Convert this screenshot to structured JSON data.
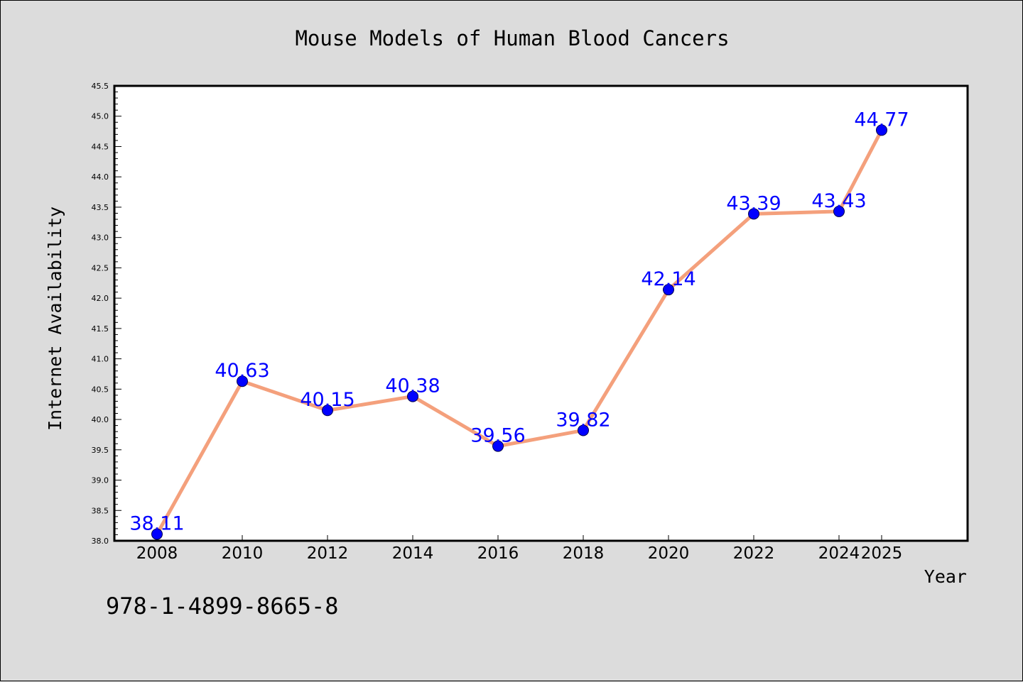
{
  "chart_data": {
    "type": "line",
    "title": "Mouse Models of Human Blood Cancers",
    "xlabel": "Year",
    "ylabel": "Internet Availability",
    "categories": [
      "2008",
      "2010",
      "2012",
      "2014",
      "2016",
      "2018",
      "2020",
      "2022",
      "2024",
      "2025"
    ],
    "series": [
      {
        "values": [
          38.11,
          40.63,
          40.15,
          40.38,
          39.56,
          39.82,
          42.14,
          43.39,
          43.43,
          44.77
        ]
      }
    ],
    "data_labels": [
      "38.11",
      "40.63",
      "40.15",
      "40.38",
      "39.56",
      "39.82",
      "42.14",
      "43.39",
      "43.43",
      "44.77"
    ],
    "ylim": [
      38.0,
      45.5
    ],
    "yticks": [
      "38.0",
      "38.5",
      "39.0",
      "39.5",
      "40.0",
      "40.5",
      "41.0",
      "41.5",
      "42.0",
      "42.5",
      "43.0",
      "43.5",
      "44.0",
      "44.5",
      "45.0",
      "45.5"
    ],
    "grid": false,
    "line_color": "#f4a07c",
    "marker_color": "#0000ff",
    "label_color": "#0000ff",
    "frame_color": "#000000"
  },
  "footer_text": "978-1-4899-8665-8"
}
